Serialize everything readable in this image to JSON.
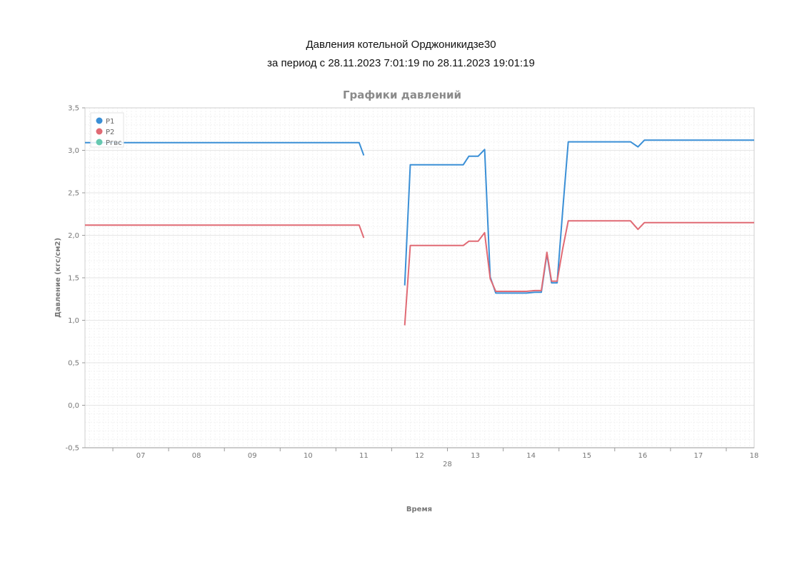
{
  "report": {
    "title": "Давления котельной Орджоникидзе30",
    "period": "за период с 28.11.2023 7:01:19 по 28.11.2023 19:01:19"
  },
  "chart_data": {
    "type": "line",
    "title": "Графики давлений",
    "xlabel": "Время",
    "ylabel": "Давление (кгс/см2)",
    "ylim": [
      -0.5,
      3.5
    ],
    "xlim": [
      "06:30",
      "18:30"
    ],
    "x_tick_labels": [
      "07",
      "08",
      "09",
      "10",
      "11",
      "12",
      "13",
      "14",
      "15",
      "16",
      "17",
      "18"
    ],
    "x_date_label": "28",
    "y_ticks": [
      -0.5,
      0.0,
      0.5,
      1.0,
      1.5,
      2.0,
      2.5,
      3.0,
      3.5
    ],
    "y_tick_labels": [
      "-0,5",
      "0,0",
      "0,5",
      "1,0",
      "1,5",
      "2,0",
      "2,5",
      "3,0",
      "3,5"
    ],
    "grid": true,
    "legend_position": "top-left",
    "series": [
      {
        "name": "P1",
        "color": "#3a8fd6",
        "segments": [
          [
            [
              "06:30",
              3.09
            ],
            [
              "11:25",
              3.09
            ],
            [
              "11:30",
              2.94
            ]
          ],
          [
            [
              "12:14",
              1.41
            ],
            [
              "12:20",
              2.83
            ],
            [
              "13:17",
              2.83
            ],
            [
              "13:23",
              2.93
            ],
            [
              "13:33",
              2.93
            ],
            [
              "13:40",
              3.01
            ],
            [
              "13:46",
              1.51
            ],
            [
              "13:52",
              1.32
            ],
            [
              "14:25",
              1.32
            ],
            [
              "14:34",
              1.33
            ],
            [
              "14:41",
              1.33
            ],
            [
              "14:47",
              1.78
            ],
            [
              "14:52",
              1.44
            ],
            [
              "14:58",
              1.44
            ],
            [
              "15:04",
              2.29
            ],
            [
              "15:10",
              3.1
            ],
            [
              "16:17",
              3.1
            ],
            [
              "16:25",
              3.04
            ],
            [
              "16:32",
              3.12
            ],
            [
              "18:30",
              3.12
            ]
          ]
        ]
      },
      {
        "name": "P2",
        "color": "#e06a74",
        "segments": [
          [
            [
              "06:30",
              2.12
            ],
            [
              "11:25",
              2.12
            ],
            [
              "11:30",
              1.97
            ]
          ],
          [
            [
              "12:14",
              0.94
            ],
            [
              "12:20",
              1.88
            ],
            [
              "13:17",
              1.88
            ],
            [
              "13:23",
              1.93
            ],
            [
              "13:33",
              1.93
            ],
            [
              "13:40",
              2.03
            ],
            [
              "13:46",
              1.49
            ],
            [
              "13:52",
              1.34
            ],
            [
              "14:25",
              1.34
            ],
            [
              "14:34",
              1.35
            ],
            [
              "14:41",
              1.35
            ],
            [
              "14:47",
              1.8
            ],
            [
              "14:52",
              1.46
            ],
            [
              "14:58",
              1.46
            ],
            [
              "15:04",
              1.84
            ],
            [
              "15:10",
              2.17
            ],
            [
              "16:17",
              2.17
            ],
            [
              "16:25",
              2.07
            ],
            [
              "16:32",
              2.15
            ],
            [
              "18:30",
              2.15
            ]
          ]
        ]
      },
      {
        "name": "Pгвс",
        "color": "#66c8b0",
        "segments": []
      }
    ]
  }
}
